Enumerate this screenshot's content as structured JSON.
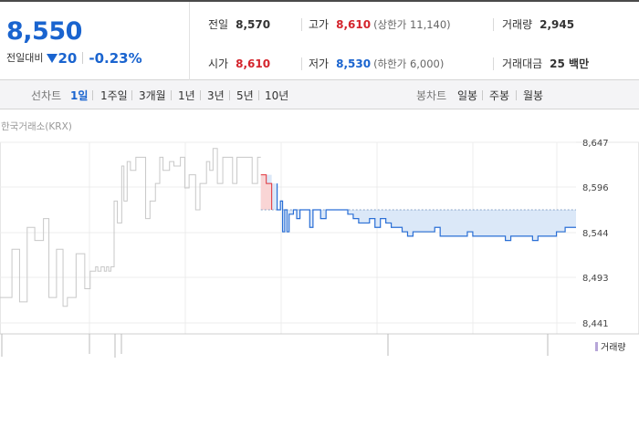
{
  "quote": {
    "price": "8,550",
    "change_label": "전일대비",
    "change_abs": "20",
    "change_pct": "-0.23%",
    "prev_label": "전일",
    "prev_value": "8,570",
    "high_label": "고가",
    "high_value": "8,610",
    "upper_limit": "(상한가 11,140)",
    "volume_label": "거래량",
    "volume_value": "2,945",
    "open_label": "시가",
    "open_value": "8,610",
    "low_label": "저가",
    "low_value": "8,530",
    "lower_limit": "(하한가 6,000)",
    "amount_label": "거래대금",
    "amount_value": "25 백만"
  },
  "toolbar": {
    "line_chart_label": "선차트",
    "line_periods": [
      "1일",
      "1주일",
      "3개월",
      "1년",
      "3년",
      "5년",
      "10년"
    ],
    "active_period": "1일",
    "candle_chart_label": "봉차트",
    "candle_periods": [
      "일봉",
      "주봉",
      "월봉"
    ]
  },
  "chart": {
    "exchange_label": "한국거래소(KRX)",
    "y_ticks": [
      "8,647",
      "8,596",
      "8,544",
      "8,493",
      "8,441"
    ],
    "volume_legend": "거래량",
    "colors": {
      "prev_day": "#c8c8c8",
      "today": "#2a6fd6",
      "up_fill": "#f9d5d5",
      "down_fill": "#dbe8f8",
      "up_line": "#e0323a"
    }
  },
  "chart_data": {
    "type": "line",
    "ylim": [
      8441,
      8647
    ],
    "reference_price": 8570,
    "series": [
      {
        "values": [
          8470,
          8525,
          8465,
          8550,
          8535,
          8560,
          8470,
          8525,
          8460,
          8470,
          8520,
          8480,
          8500,
          8505,
          8500,
          8505,
          8500,
          8505,
          8500,
          8505,
          8580,
          8555,
          8620,
          8580,
          8625,
          8615,
          8630,
          8630,
          8560,
          8580,
          8600,
          8630,
          8615,
          8625,
          8620,
          8630,
          8595,
          8610,
          8570,
          8600,
          8625,
          8615,
          8640,
          8600,
          8630,
          8630,
          8600,
          8630,
          8630,
          8630,
          8600,
          8630,
          8630
        ],
        "x_frac": [
          0,
          0.11,
          0.18,
          0.25,
          0.32,
          0.4,
          0.45,
          0.52,
          0.58,
          0.62,
          0.7,
          0.78,
          0.83,
          0.88,
          0.9,
          0.93,
          0.96,
          0.98,
          1.0,
          1.02,
          1.05,
          1.08,
          1.12,
          1.14,
          1.17,
          1.2,
          1.25,
          1.3,
          1.34,
          1.38,
          1.43,
          1.47,
          1.5,
          1.56,
          1.6,
          1.66,
          1.7,
          1.74,
          1.8,
          1.84,
          1.9,
          1.93,
          1.96,
          2.0,
          2.05,
          2.1,
          2.14,
          2.18,
          2.22,
          2.28,
          2.32,
          2.37,
          2.4
        ]
      },
      {
        "values": [
          8610,
          8610,
          8600,
          8570,
          8580,
          8545,
          8570,
          8545,
          8565,
          8570,
          8560,
          8570,
          8570,
          8550,
          8570,
          8560,
          8570,
          8570,
          8570,
          8570,
          8565,
          8560,
          8555,
          8560,
          8550,
          8560,
          8555,
          8550,
          8550,
          8545,
          8540,
          8545,
          8545,
          8550,
          8540,
          8540,
          8540,
          8545,
          8540,
          8540,
          8540,
          8540,
          8535,
          8540,
          8540,
          8535,
          8540,
          8540,
          8540,
          8540,
          8545,
          8550,
          8550
        ],
        "x_frac": [
          2.4,
          2.45,
          2.5,
          2.55,
          2.58,
          2.6,
          2.62,
          2.64,
          2.66,
          2.7,
          2.73,
          2.76,
          2.8,
          2.85,
          2.88,
          2.95,
          3.0,
          3.05,
          3.1,
          3.15,
          3.2,
          3.25,
          3.3,
          3.4,
          3.45,
          3.5,
          3.55,
          3.6,
          3.65,
          3.7,
          3.75,
          3.8,
          3.9,
          4.0,
          4.05,
          4.1,
          4.2,
          4.3,
          4.35,
          4.4,
          4.5,
          4.6,
          4.65,
          4.7,
          4.8,
          4.9,
          4.95,
          5.0,
          5.05,
          5.1,
          5.12,
          5.2,
          5.3
        ]
      }
    ],
    "y_ticks": [
      8647,
      8596,
      8544,
      8493,
      8441
    ]
  }
}
